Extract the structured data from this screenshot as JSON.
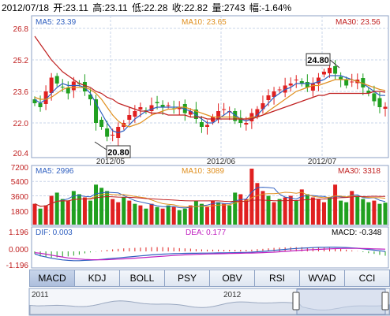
{
  "header": {
    "date": "2012/07/18",
    "open": "开:23.11",
    "high": "高:23.11",
    "low": "低:22.28",
    "close": "收:22.82",
    "volume": "量:2743",
    "change": "幅:-1.64%"
  },
  "price_panel": {
    "ma5_label": "MA5: 23.39",
    "ma10_label": "MA10: 23.65",
    "ma30_label": "MA30: 23.56",
    "y_ticks": [
      "26.8",
      "25.2",
      "23.6",
      "22.0",
      "20.4"
    ],
    "x_ticks": [
      "2012/05",
      "2012/06",
      "2012/07"
    ],
    "max_callout": "24.80",
    "min_callout": "20.80"
  },
  "volume_panel": {
    "ma5_label": "MA5: 2996",
    "ma10_label": "MA10: 3089",
    "ma30_label": "MA30: 3318",
    "y_ticks": [
      "7200",
      "5400",
      "3600",
      "1800"
    ]
  },
  "macd_panel": {
    "dif_label": "DIF: 0.003",
    "dea_label": "DEA: 0.177",
    "macd_label": "MACD: -0.348",
    "y_ticks": [
      "1.196",
      "0.000",
      "-1.196"
    ]
  },
  "tabs": [
    "MACD",
    "KDJ",
    "BOLL",
    "PSY",
    "OBV",
    "RSI",
    "WVAD",
    "CCI"
  ],
  "navigator": {
    "labels": [
      "2011",
      "2012"
    ]
  },
  "colors": {
    "up": "#e02020",
    "down": "#20a020",
    "ma5": "#3060c0",
    "ma10": "#e09020",
    "ma30": "#c02020",
    "grid": "#c8d4e8"
  },
  "chart_data": [
    {
      "type": "candlestick",
      "title": "",
      "x": [
        "2012/05",
        "2012/06",
        "2012/07"
      ],
      "ylim": [
        20.4,
        26.8
      ],
      "highest": 24.8,
      "lowest": 20.8,
      "ma": [
        {
          "name": "MA5",
          "last": 23.39
        },
        {
          "name": "MA10",
          "last": 23.65
        },
        {
          "name": "MA30",
          "last": 23.56
        }
      ],
      "close_path": [
        23.0,
        22.8,
        23.6,
        24.3,
        24.0,
        23.8,
        23.5,
        24.1,
        24.0,
        23.6,
        23.2,
        22.0,
        21.8,
        21.3,
        21.4,
        21.8,
        22.0,
        22.4,
        22.6,
        22.8,
        22.6,
        22.9,
        23.0,
        22.8,
        22.9,
        22.7,
        22.8,
        22.5,
        22.6,
        22.2,
        21.8,
        21.9,
        22.3,
        22.6,
        22.7,
        22.6,
        22.1,
        22.0,
        22.0,
        22.5,
        22.7,
        23.0,
        23.4,
        23.6,
        23.7,
        23.9,
        24.0,
        24.2,
        24.0,
        23.8,
        24.0,
        24.3,
        24.6,
        24.8,
        24.5,
        24.2,
        23.9,
        24.1,
        24.2,
        23.8,
        23.5,
        23.1,
        22.8,
        22.82
      ],
      "ma5_path": [
        23.2,
        23.0,
        23.2,
        23.5,
        23.8,
        24.0,
        23.9,
        23.9,
        23.9,
        23.8,
        23.5,
        23.0,
        22.5,
        22.0,
        21.6,
        21.5,
        21.6,
        21.9,
        22.2,
        22.4,
        22.6,
        22.7,
        22.8,
        22.8,
        22.8,
        22.8,
        22.8,
        22.7,
        22.6,
        22.4,
        22.2,
        22.0,
        22.0,
        22.2,
        22.4,
        22.6,
        22.4,
        22.2,
        22.1,
        22.2,
        22.4,
        22.7,
        23.0,
        23.3,
        23.5,
        23.7,
        23.8,
        24.0,
        24.0,
        24.0,
        24.0,
        24.1,
        24.2,
        24.4,
        24.4,
        24.4,
        24.3,
        24.2,
        24.1,
        24.0,
        23.8,
        23.6,
        23.4,
        23.39
      ],
      "ma10_path": [
        23.3,
        23.2,
        23.2,
        23.3,
        23.5,
        23.7,
        23.8,
        23.8,
        23.8,
        23.8,
        23.7,
        23.5,
        23.2,
        22.8,
        22.4,
        22.1,
        21.9,
        21.8,
        21.9,
        22.0,
        22.2,
        22.4,
        22.5,
        22.6,
        22.7,
        22.7,
        22.8,
        22.8,
        22.7,
        22.6,
        22.5,
        22.4,
        22.3,
        22.3,
        22.3,
        22.3,
        22.3,
        22.2,
        22.2,
        22.3,
        22.3,
        22.4,
        22.6,
        22.8,
        23.0,
        23.2,
        23.4,
        23.6,
        23.7,
        23.8,
        23.9,
        23.9,
        24.0,
        24.1,
        24.2,
        24.2,
        24.2,
        24.2,
        24.1,
        24.0,
        23.9,
        23.8,
        23.7,
        23.65
      ],
      "ma30_path": [
        26.4,
        26.0,
        25.6,
        25.2,
        24.9,
        24.6,
        24.4,
        24.2,
        24.0,
        23.9,
        23.8,
        23.6,
        23.5,
        23.3,
        23.2,
        23.0,
        22.9,
        22.8,
        22.7,
        22.6,
        22.6,
        22.5,
        22.5,
        22.5,
        22.4,
        22.4,
        22.4,
        22.4,
        22.3,
        22.3,
        22.3,
        22.2,
        22.2,
        22.2,
        22.2,
        22.2,
        22.2,
        22.2,
        22.2,
        22.2,
        22.3,
        22.4,
        22.5,
        22.6,
        22.7,
        22.8,
        22.9,
        23.0,
        23.1,
        23.2,
        23.3,
        23.4,
        23.4,
        23.5,
        23.5,
        23.5,
        23.5,
        23.5,
        23.5,
        23.5,
        23.5,
        23.6,
        23.6,
        23.56
      ]
    },
    {
      "type": "bar",
      "title": "",
      "ylim": [
        0,
        7200
      ],
      "values": [
        2600,
        2000,
        2400,
        3600,
        4000,
        3200,
        3000,
        4200,
        3800,
        3400,
        3000,
        5000,
        4600,
        4200,
        3200,
        2800,
        3400,
        3000,
        2600,
        2400,
        2000,
        2600,
        2200,
        2000,
        2400,
        2200,
        1800,
        2000,
        2400,
        3000,
        2600,
        2200,
        3000,
        2800,
        2600,
        2400,
        4000,
        3800,
        3200,
        7000,
        5200,
        4200,
        3600,
        2800,
        3200,
        3400,
        3600,
        3000,
        4400,
        3800,
        3400,
        3200,
        2800,
        3400,
        5000,
        3000,
        2800,
        4200,
        3600,
        3200,
        2800,
        3000,
        2600,
        2743
      ],
      "up": [
        true,
        false,
        true,
        true,
        false,
        false,
        true,
        false,
        false,
        true,
        false,
        false,
        false,
        false,
        true,
        true,
        false,
        true,
        false,
        true,
        false,
        true,
        false,
        true,
        false,
        true,
        false,
        false,
        true,
        false,
        false,
        true,
        true,
        false,
        true,
        false,
        false,
        true,
        true,
        true,
        true,
        true,
        false,
        true,
        false,
        true,
        true,
        false,
        true,
        false,
        true,
        true,
        true,
        false,
        true,
        false,
        false,
        true,
        false,
        false,
        false,
        true,
        false,
        false
      ],
      "ma": [
        {
          "name": "MA5",
          "last": 2996
        },
        {
          "name": "MA10",
          "last": 3089
        },
        {
          "name": "MA30",
          "last": 3318
        }
      ]
    },
    {
      "type": "line",
      "title": "",
      "ylim": [
        -1.196,
        1.196
      ],
      "series": [
        {
          "name": "DIF",
          "last": 0.003,
          "values": [
            -0.2,
            -0.35,
            -0.45,
            -0.55,
            -0.62,
            -0.68,
            -0.72,
            -0.74,
            -0.74,
            -0.72,
            -0.7,
            -0.68,
            -0.64,
            -0.6,
            -0.56,
            -0.52,
            -0.48,
            -0.44,
            -0.4,
            -0.36,
            -0.32,
            -0.28,
            -0.25,
            -0.22,
            -0.2,
            -0.18,
            -0.17,
            -0.16,
            -0.15,
            -0.15,
            -0.14,
            -0.14,
            -0.13,
            -0.12,
            -0.12,
            -0.11,
            -0.1,
            -0.09,
            -0.08,
            -0.06,
            -0.03,
            0.0,
            0.04,
            0.08,
            0.12,
            0.16,
            0.2,
            0.23,
            0.26,
            0.28,
            0.3,
            0.32,
            0.33,
            0.34,
            0.34,
            0.33,
            0.31,
            0.28,
            0.25,
            0.2,
            0.15,
            0.1,
            0.05,
            0.003
          ]
        },
        {
          "name": "DEA",
          "last": 0.177,
          "values": [
            -0.1,
            -0.15,
            -0.22,
            -0.3,
            -0.38,
            -0.45,
            -0.52,
            -0.57,
            -0.61,
            -0.64,
            -0.66,
            -0.67,
            -0.67,
            -0.66,
            -0.64,
            -0.62,
            -0.6,
            -0.57,
            -0.54,
            -0.51,
            -0.48,
            -0.45,
            -0.42,
            -0.39,
            -0.36,
            -0.33,
            -0.3,
            -0.28,
            -0.26,
            -0.24,
            -0.22,
            -0.21,
            -0.2,
            -0.19,
            -0.18,
            -0.17,
            -0.16,
            -0.15,
            -0.14,
            -0.13,
            -0.12,
            -0.1,
            -0.08,
            -0.06,
            -0.03,
            0.0,
            0.03,
            0.06,
            0.09,
            0.12,
            0.14,
            0.16,
            0.18,
            0.2,
            0.22,
            0.23,
            0.24,
            0.24,
            0.24,
            0.23,
            0.22,
            0.2,
            0.19,
            0.177
          ]
        },
        {
          "name": "MACD",
          "last": -0.348
        }
      ]
    }
  ]
}
